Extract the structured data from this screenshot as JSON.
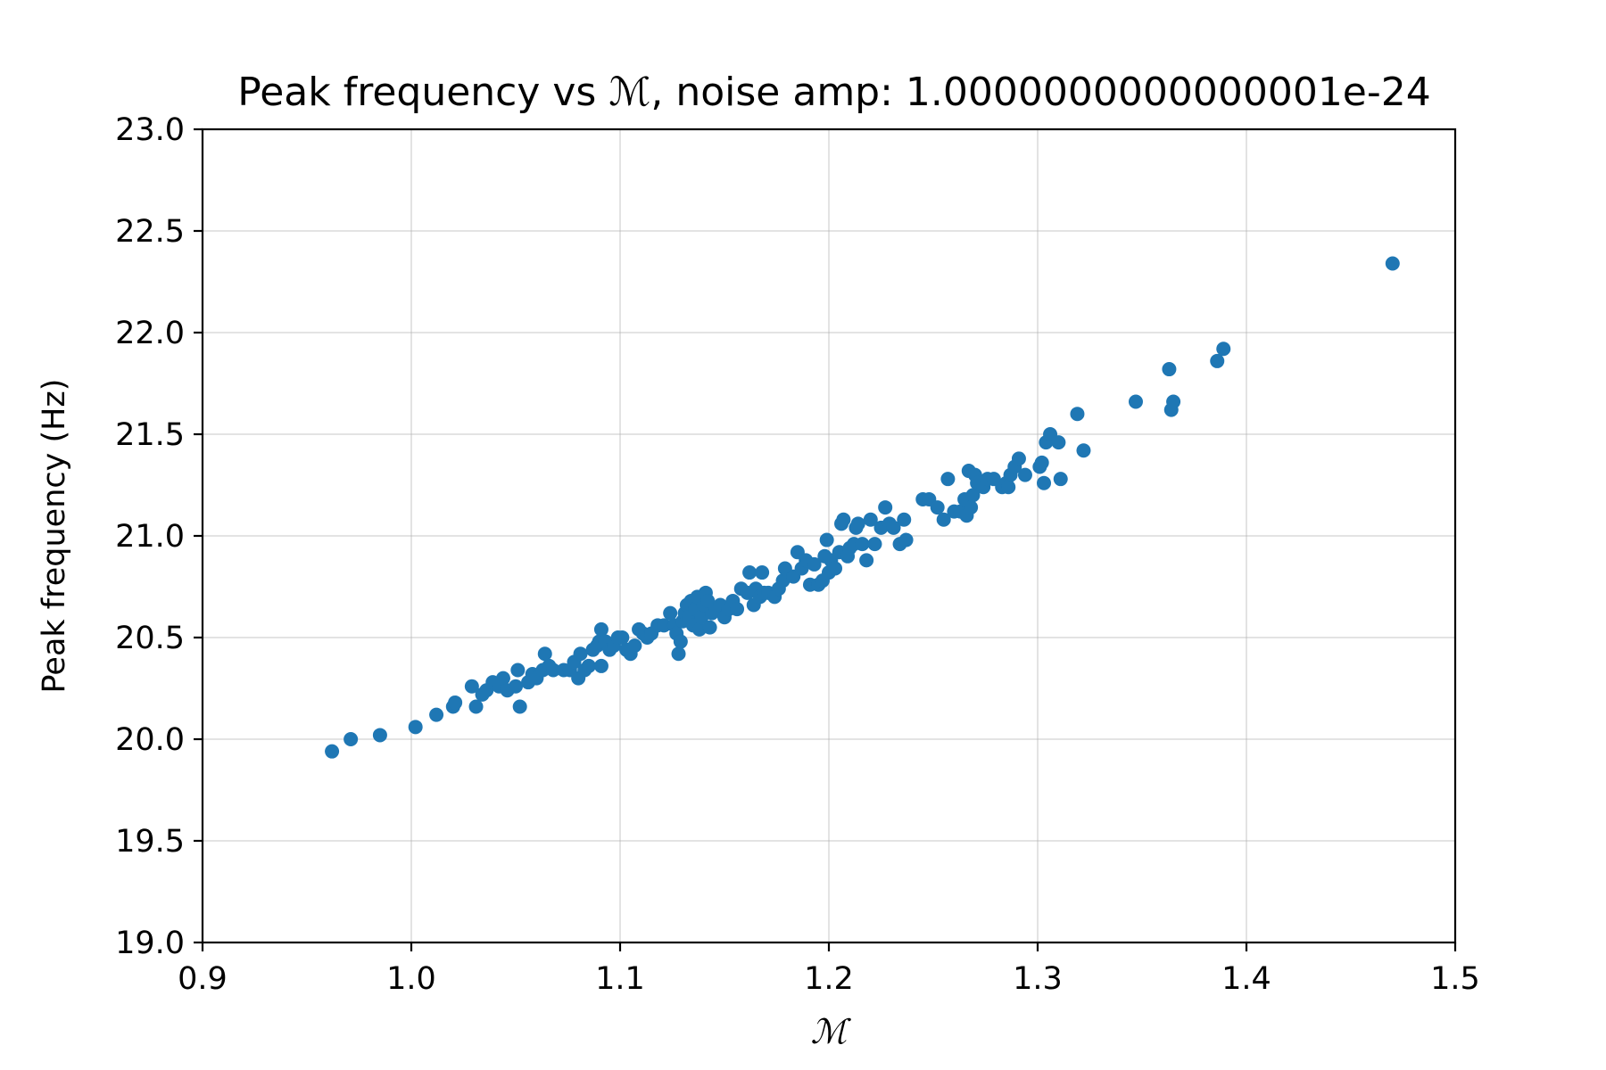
{
  "chart_data": {
    "type": "scatter",
    "title": "Peak frequency vs ℳ, noise amp: 1.0000000000000001e-24",
    "xlabel": "ℳ",
    "ylabel": "Peak frequency (Hz)",
    "xlim": [
      0.9,
      1.5
    ],
    "ylim": [
      19.0,
      23.0
    ],
    "x_ticks": [
      "0.9",
      "1.0",
      "1.1",
      "1.2",
      "1.3",
      "1.4",
      "1.5"
    ],
    "y_ticks": [
      "19.0",
      "19.5",
      "20.0",
      "20.5",
      "21.0",
      "21.5",
      "22.0",
      "22.5",
      "23.0"
    ],
    "grid": true,
    "marker_color": "#1f77b4",
    "series": [
      {
        "points": [
          [
            0.962,
            19.94
          ],
          [
            0.971,
            20.0
          ],
          [
            0.985,
            20.02
          ],
          [
            1.002,
            20.06
          ],
          [
            1.012,
            20.12
          ],
          [
            1.02,
            20.16
          ],
          [
            1.021,
            20.18
          ],
          [
            1.029,
            20.26
          ],
          [
            1.031,
            20.16
          ],
          [
            1.034,
            20.22
          ],
          [
            1.036,
            20.24
          ],
          [
            1.039,
            20.28
          ],
          [
            1.042,
            20.26
          ],
          [
            1.044,
            20.3
          ],
          [
            1.046,
            20.24
          ],
          [
            1.05,
            20.26
          ],
          [
            1.051,
            20.34
          ],
          [
            1.052,
            20.16
          ],
          [
            1.056,
            20.28
          ],
          [
            1.058,
            20.32
          ],
          [
            1.06,
            20.3
          ],
          [
            1.063,
            20.34
          ],
          [
            1.064,
            20.42
          ],
          [
            1.066,
            20.36
          ],
          [
            1.068,
            20.34
          ],
          [
            1.073,
            20.34
          ],
          [
            1.076,
            20.34
          ],
          [
            1.078,
            20.38
          ],
          [
            1.08,
            20.3
          ],
          [
            1.081,
            20.42
          ],
          [
            1.083,
            20.34
          ],
          [
            1.085,
            20.36
          ],
          [
            1.087,
            20.44
          ],
          [
            1.089,
            20.46
          ],
          [
            1.09,
            20.48
          ],
          [
            1.091,
            20.54
          ],
          [
            1.091,
            20.36
          ],
          [
            1.093,
            20.48
          ],
          [
            1.095,
            20.44
          ],
          [
            1.097,
            20.46
          ],
          [
            1.099,
            20.5
          ],
          [
            1.101,
            20.5
          ],
          [
            1.103,
            20.44
          ],
          [
            1.105,
            20.42
          ],
          [
            1.107,
            20.46
          ],
          [
            1.109,
            20.54
          ],
          [
            1.111,
            20.52
          ],
          [
            1.113,
            20.5
          ],
          [
            1.115,
            20.52
          ],
          [
            1.118,
            20.56
          ],
          [
            1.121,
            20.56
          ],
          [
            1.124,
            20.62
          ],
          [
            1.126,
            20.56
          ],
          [
            1.127,
            20.52
          ],
          [
            1.128,
            20.42
          ],
          [
            1.129,
            20.48
          ],
          [
            1.13,
            20.58
          ],
          [
            1.131,
            20.62
          ],
          [
            1.132,
            20.66
          ],
          [
            1.133,
            20.6
          ],
          [
            1.134,
            20.68
          ],
          [
            1.135,
            20.56
          ],
          [
            1.136,
            20.64
          ],
          [
            1.137,
            20.7
          ],
          [
            1.138,
            20.54
          ],
          [
            1.139,
            20.6
          ],
          [
            1.14,
            20.66
          ],
          [
            1.141,
            20.72
          ],
          [
            1.142,
            20.68
          ],
          [
            1.143,
            20.55
          ],
          [
            1.144,
            20.62
          ],
          [
            1.146,
            20.64
          ],
          [
            1.148,
            20.66
          ],
          [
            1.15,
            20.6
          ],
          [
            1.152,
            20.64
          ],
          [
            1.154,
            20.68
          ],
          [
            1.156,
            20.64
          ],
          [
            1.158,
            20.74
          ],
          [
            1.161,
            20.72
          ],
          [
            1.162,
            20.82
          ],
          [
            1.164,
            20.66
          ],
          [
            1.165,
            20.74
          ],
          [
            1.167,
            20.7
          ],
          [
            1.168,
            20.82
          ],
          [
            1.169,
            20.72
          ],
          [
            1.171,
            20.72
          ],
          [
            1.174,
            20.7
          ],
          [
            1.176,
            20.74
          ],
          [
            1.178,
            20.78
          ],
          [
            1.179,
            20.84
          ],
          [
            1.183,
            20.8
          ],
          [
            1.185,
            20.92
          ],
          [
            1.187,
            20.84
          ],
          [
            1.189,
            20.88
          ],
          [
            1.191,
            20.76
          ],
          [
            1.193,
            20.86
          ],
          [
            1.195,
            20.76
          ],
          [
            1.197,
            20.78
          ],
          [
            1.198,
            20.9
          ],
          [
            1.199,
            20.98
          ],
          [
            1.2,
            20.82
          ],
          [
            1.201,
            20.88
          ],
          [
            1.203,
            20.84
          ],
          [
            1.205,
            20.92
          ],
          [
            1.206,
            21.06
          ],
          [
            1.207,
            21.08
          ],
          [
            1.209,
            20.9
          ],
          [
            1.21,
            20.94
          ],
          [
            1.212,
            20.96
          ],
          [
            1.213,
            21.04
          ],
          [
            1.214,
            21.06
          ],
          [
            1.216,
            20.96
          ],
          [
            1.218,
            20.88
          ],
          [
            1.22,
            21.08
          ],
          [
            1.222,
            20.96
          ],
          [
            1.225,
            21.04
          ],
          [
            1.227,
            21.14
          ],
          [
            1.229,
            21.06
          ],
          [
            1.231,
            21.04
          ],
          [
            1.234,
            20.96
          ],
          [
            1.236,
            21.08
          ],
          [
            1.237,
            20.98
          ],
          [
            1.245,
            21.18
          ],
          [
            1.248,
            21.18
          ],
          [
            1.252,
            21.14
          ],
          [
            1.255,
            21.08
          ],
          [
            1.257,
            21.28
          ],
          [
            1.26,
            21.12
          ],
          [
            1.263,
            21.12
          ],
          [
            1.265,
            21.18
          ],
          [
            1.266,
            21.1
          ],
          [
            1.267,
            21.32
          ],
          [
            1.268,
            21.14
          ],
          [
            1.269,
            21.2
          ],
          [
            1.27,
            21.3
          ],
          [
            1.271,
            21.26
          ],
          [
            1.274,
            21.24
          ],
          [
            1.276,
            21.28
          ],
          [
            1.279,
            21.28
          ],
          [
            1.283,
            21.24
          ],
          [
            1.285,
            21.26
          ],
          [
            1.286,
            21.24
          ],
          [
            1.287,
            21.3
          ],
          [
            1.289,
            21.34
          ],
          [
            1.291,
            21.38
          ],
          [
            1.294,
            21.3
          ],
          [
            1.301,
            21.34
          ],
          [
            1.302,
            21.36
          ],
          [
            1.303,
            21.26
          ],
          [
            1.304,
            21.46
          ],
          [
            1.306,
            21.5
          ],
          [
            1.31,
            21.46
          ],
          [
            1.311,
            21.28
          ],
          [
            1.319,
            21.6
          ],
          [
            1.322,
            21.42
          ],
          [
            1.347,
            21.66
          ],
          [
            1.363,
            21.82
          ],
          [
            1.364,
            21.62
          ],
          [
            1.365,
            21.66
          ],
          [
            1.386,
            21.86
          ],
          [
            1.389,
            21.92
          ],
          [
            1.47,
            22.34
          ]
        ]
      }
    ]
  }
}
